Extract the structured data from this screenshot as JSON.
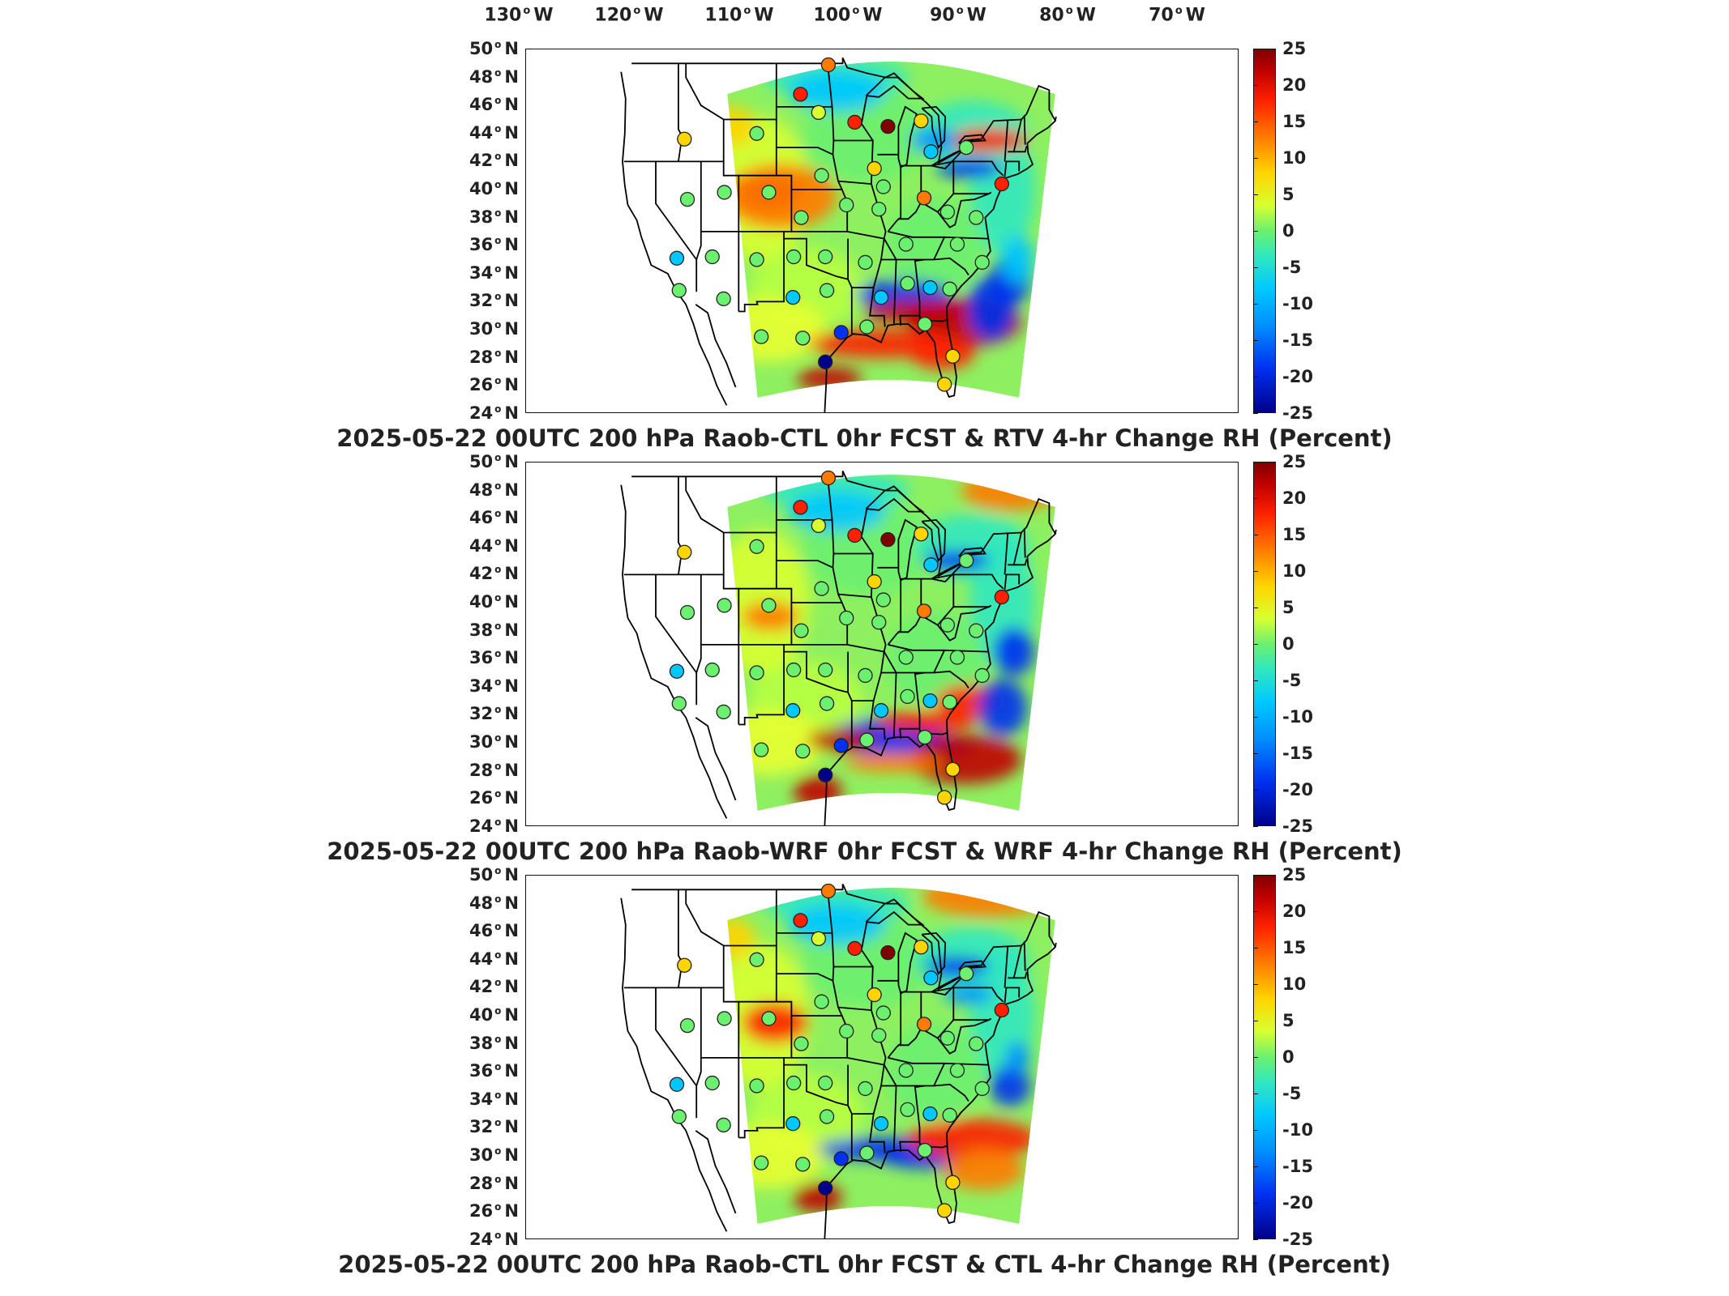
{
  "longitude_labels": [
    {
      "deg": "130",
      "hemi": "W"
    },
    {
      "deg": "120",
      "hemi": "W"
    },
    {
      "deg": "110",
      "hemi": "W"
    },
    {
      "deg": "100",
      "hemi": "W"
    },
    {
      "deg": "90",
      "hemi": "W"
    },
    {
      "deg": "80",
      "hemi": "W"
    },
    {
      "deg": "70",
      "hemi": "W"
    }
  ],
  "latitude_labels": [
    {
      "deg": "50",
      "hemi": "N"
    },
    {
      "deg": "48",
      "hemi": "N"
    },
    {
      "deg": "46",
      "hemi": "N"
    },
    {
      "deg": "44",
      "hemi": "N"
    },
    {
      "deg": "42",
      "hemi": "N"
    },
    {
      "deg": "40",
      "hemi": "N"
    },
    {
      "deg": "38",
      "hemi": "N"
    },
    {
      "deg": "36",
      "hemi": "N"
    },
    {
      "deg": "34",
      "hemi": "N"
    },
    {
      "deg": "32",
      "hemi": "N"
    },
    {
      "deg": "30",
      "hemi": "N"
    },
    {
      "deg": "28",
      "hemi": "N"
    },
    {
      "deg": "26",
      "hemi": "N"
    },
    {
      "deg": "24",
      "hemi": "N"
    }
  ],
  "colorbar": {
    "ticks": [
      "25",
      "20",
      "15",
      "10",
      "5",
      "0",
      "-5",
      "-10",
      "-15",
      "-20",
      "-25"
    ],
    "range": [
      -25,
      25
    ],
    "colors": [
      "#00008a",
      "#0030f0",
      "#0090ff",
      "#00c8ff",
      "#30e8c0",
      "#6cf070",
      "#d8ff30",
      "#ffd400",
      "#ff7a00",
      "#ff2000",
      "#c00000",
      "#800000"
    ]
  },
  "panels": [
    {
      "title": "2025-05-22 00UTC 200 hPa Raob-CTL 0hr FCST & RTV 4-hr Change RH (Percent)"
    },
    {
      "title": "2025-05-22 00UTC 200 hPa Raob-WRF 0hr FCST & WRF 4-hr Change RH (Percent)"
    },
    {
      "title": "2025-05-22 00UTC 200 hPa Raob-CTL 0hr FCST & CTL 4-hr Change RH (Percent)"
    }
  ],
  "stations": [
    {
      "lon": -97.1,
      "lat": 48.9,
      "color": "#ff7a00"
    },
    {
      "lon": -100.8,
      "lat": 46.8,
      "color": "#ff2000"
    },
    {
      "lon": -98.4,
      "lat": 45.5,
      "color": "#d8ff30"
    },
    {
      "lon": -93.6,
      "lat": 44.8,
      "color": "#ff2000"
    },
    {
      "lon": -89.2,
      "lat": 44.5,
      "color": "#800000"
    },
    {
      "lon": -84.8,
      "lat": 44.9,
      "color": "#ffd400"
    },
    {
      "lon": -106.6,
      "lat": 44.0,
      "color": "#6cf070"
    },
    {
      "lon": -116.2,
      "lat": 43.6,
      "color": "#ffd400"
    },
    {
      "lon": -83.5,
      "lat": 42.7,
      "color": "#00c8ff"
    },
    {
      "lon": -78.8,
      "lat": 43.0,
      "color": "#6cf070"
    },
    {
      "lon": -98.0,
      "lat": 41.0,
      "color": "#6cf070"
    },
    {
      "lon": -91.0,
      "lat": 41.5,
      "color": "#ffd400"
    },
    {
      "lon": -89.8,
      "lat": 40.2,
      "color": "#6cf070"
    },
    {
      "lon": -84.4,
      "lat": 39.4,
      "color": "#ff7a00"
    },
    {
      "lon": -74.1,
      "lat": 40.4,
      "color": "#ff2000"
    },
    {
      "lon": -115.8,
      "lat": 39.3,
      "color": "#6cf070"
    },
    {
      "lon": -110.9,
      "lat": 39.8,
      "color": "#6cf070"
    },
    {
      "lon": -105.0,
      "lat": 39.8,
      "color": "#6cf070"
    },
    {
      "lon": -100.7,
      "lat": 38.0,
      "color": "#6cf070"
    },
    {
      "lon": -94.7,
      "lat": 38.9,
      "color": "#6cf070"
    },
    {
      "lon": -90.4,
      "lat": 38.6,
      "color": "#6cf070"
    },
    {
      "lon": -81.3,
      "lat": 38.4,
      "color": "#6cf070"
    },
    {
      "lon": -77.5,
      "lat": 38.0,
      "color": "#6cf070"
    },
    {
      "lon": -117.2,
      "lat": 35.1,
      "color": "#00c8ff"
    },
    {
      "lon": -112.5,
      "lat": 35.2,
      "color": "#6cf070"
    },
    {
      "lon": -106.6,
      "lat": 35.0,
      "color": "#6cf070"
    },
    {
      "lon": -101.7,
      "lat": 35.2,
      "color": "#6cf070"
    },
    {
      "lon": -97.5,
      "lat": 35.2,
      "color": "#6cf070"
    },
    {
      "lon": -92.2,
      "lat": 34.8,
      "color": "#6cf070"
    },
    {
      "lon": -86.8,
      "lat": 36.1,
      "color": "#6cf070"
    },
    {
      "lon": -80.0,
      "lat": 36.1,
      "color": "#6cf070"
    },
    {
      "lon": -76.7,
      "lat": 34.8,
      "color": "#6cf070"
    },
    {
      "lon": -116.9,
      "lat": 32.8,
      "color": "#6cf070"
    },
    {
      "lon": -111.0,
      "lat": 32.2,
      "color": "#6cf070"
    },
    {
      "lon": -101.8,
      "lat": 32.3,
      "color": "#00c8ff"
    },
    {
      "lon": -97.3,
      "lat": 32.8,
      "color": "#6cf070"
    },
    {
      "lon": -90.1,
      "lat": 32.3,
      "color": "#00c8ff"
    },
    {
      "lon": -86.6,
      "lat": 33.3,
      "color": "#6cf070"
    },
    {
      "lon": -83.6,
      "lat": 33.0,
      "color": "#00c8ff"
    },
    {
      "lon": -81.0,
      "lat": 32.9,
      "color": "#6cf070"
    },
    {
      "lon": -106.0,
      "lat": 29.5,
      "color": "#6cf070"
    },
    {
      "lon": -100.5,
      "lat": 29.4,
      "color": "#6cf070"
    },
    {
      "lon": -95.4,
      "lat": 29.8,
      "color": "#0030f0"
    },
    {
      "lon": -97.5,
      "lat": 27.7,
      "color": "#00008a"
    },
    {
      "lon": -92.0,
      "lat": 30.2,
      "color": "#6cf070"
    },
    {
      "lon": -84.3,
      "lat": 30.4,
      "color": "#6cf070"
    },
    {
      "lon": -80.6,
      "lat": 28.1,
      "color": "#ffd400"
    },
    {
      "lon": -81.7,
      "lat": 26.1,
      "color": "#ffd400"
    }
  ]
}
